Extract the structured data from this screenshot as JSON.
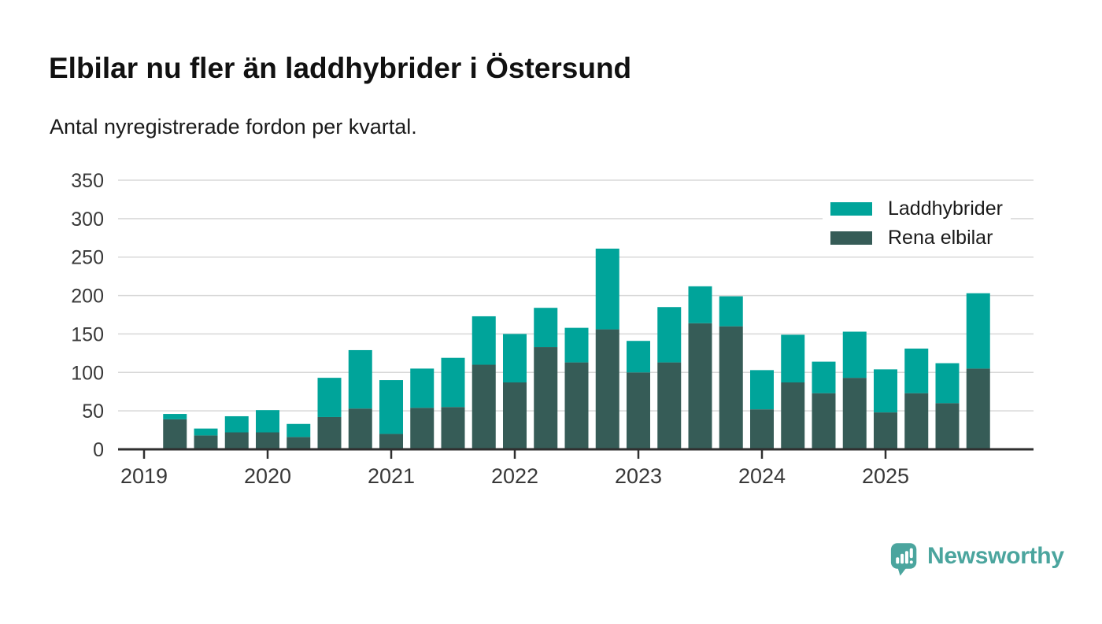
{
  "header": {
    "title": "Elbilar nu fler än laddhybrider i Östersund",
    "subtitle": "Antal nyregistrerade fordon per kvartal."
  },
  "chart_data": {
    "type": "bar",
    "stacked": true,
    "title": "Elbilar nu fler än laddhybrider i Östersund",
    "subtitle": "Antal nyregistrerade fordon per kvartal.",
    "categories": [
      "2019 K2",
      "2019 K3",
      "2019 K4",
      "2020 K1",
      "2020 K2",
      "2020 K3",
      "2020 K4",
      "2021 K1",
      "2021 K2",
      "2021 K3",
      "2021 K4",
      "2022 K1",
      "2022 K2",
      "2022 K3",
      "2022 K4",
      "2023 K1",
      "2023 K2",
      "2023 K3",
      "2023 K4",
      "2024 K1",
      "2024 K2",
      "2024 K3",
      "2024 K4",
      "2025 K1",
      "2025 K2",
      "2025 K3",
      "2025 K4"
    ],
    "series": [
      {
        "name": "Laddhybrider",
        "color": "#00a49a",
        "values": [
          7,
          9,
          21,
          29,
          17,
          51,
          76,
          70,
          51,
          64,
          63,
          63,
          51,
          45,
          105,
          41,
          72,
          48,
          39,
          51,
          62,
          41,
          60,
          56,
          58,
          52,
          98
        ]
      },
      {
        "name": "Rena elbilar",
        "color": "#365c57",
        "values": [
          39,
          18,
          22,
          22,
          16,
          42,
          53,
          20,
          54,
          55,
          110,
          87,
          133,
          113,
          156,
          100,
          113,
          164,
          160,
          52,
          87,
          73,
          93,
          48,
          73,
          60,
          105
        ]
      }
    ],
    "stack_order_bottom_to_top": [
      "Rena elbilar",
      "Laddhybrider"
    ],
    "ylim": [
      0,
      350
    ],
    "yticks": [
      0,
      50,
      100,
      150,
      200,
      250,
      300,
      350
    ],
    "year_ticks": [
      2019,
      2020,
      2021,
      2022,
      2023,
      2024,
      2025
    ],
    "first_bar_offset_quarters": 1,
    "grid": "horizontal",
    "legend_position": "top-right",
    "xlabel": "",
    "ylabel": ""
  },
  "footer": {
    "brand": "Newsworthy"
  },
  "colors": {
    "axis": "#2f2f2f",
    "grid": "#d8d8d8",
    "tick_text": "#383838",
    "brand_teal": "#4ba59e"
  }
}
